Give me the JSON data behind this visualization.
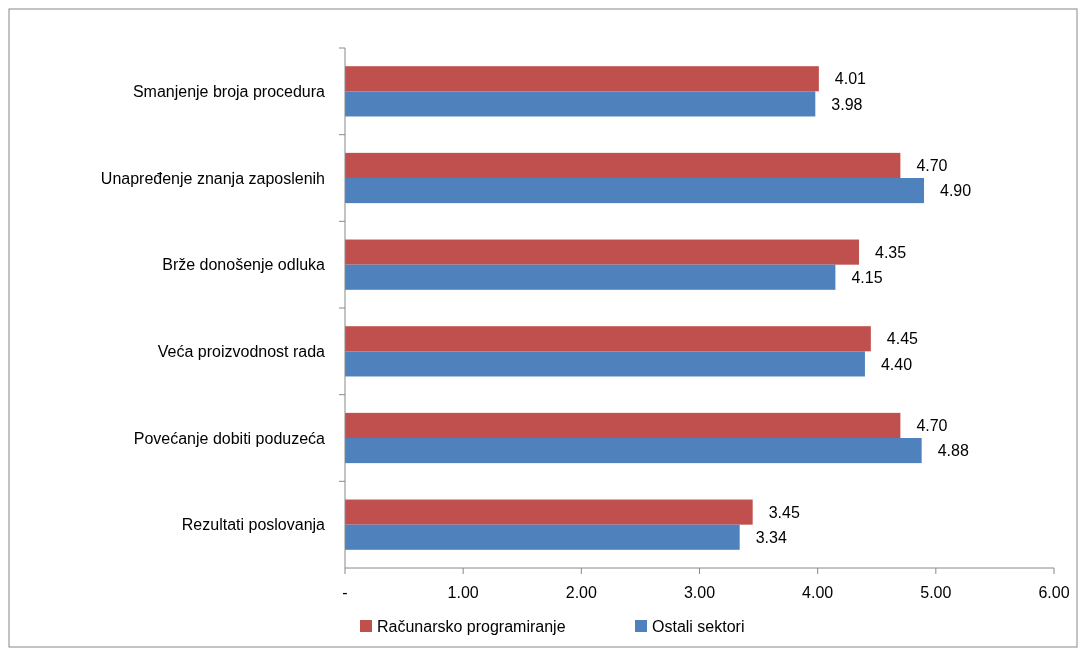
{
  "chart_data": {
    "type": "bar",
    "orientation": "horizontal",
    "categories": [
      "Smanjenje broja procedura",
      "Unapređenje znanja zaposlenih",
      "Brže donošenje odluka",
      "Veća proizvodnost rada",
      "Povećanje dobiti poduzeća",
      "Rezultati poslovanja"
    ],
    "series": [
      {
        "name": "Računarsko programiranje",
        "color": "#c0504d",
        "values": [
          4.01,
          4.7,
          4.35,
          4.45,
          4.7,
          3.45
        ],
        "value_labels": [
          "4.01",
          "4.70",
          "4.35",
          "4.45",
          "4.70",
          "3.45"
        ]
      },
      {
        "name": "Ostali sektori",
        "color": "#4f81bd",
        "values": [
          3.98,
          4.9,
          4.15,
          4.4,
          4.88,
          3.34
        ],
        "value_labels": [
          "3.98",
          "4.90",
          "4.15",
          "4.40",
          "4.88",
          "3.34"
        ]
      }
    ],
    "xlim": [
      0,
      6
    ],
    "xticks": [
      {
        "value": 0,
        "label": "-"
      },
      {
        "value": 1,
        "label": "1.00"
      },
      {
        "value": 2,
        "label": "2.00"
      },
      {
        "value": 3,
        "label": "3.00"
      },
      {
        "value": 4,
        "label": "4.00"
      },
      {
        "value": 5,
        "label": "5.00"
      },
      {
        "value": 6,
        "label": "6.00"
      }
    ],
    "legend": "bottom"
  }
}
